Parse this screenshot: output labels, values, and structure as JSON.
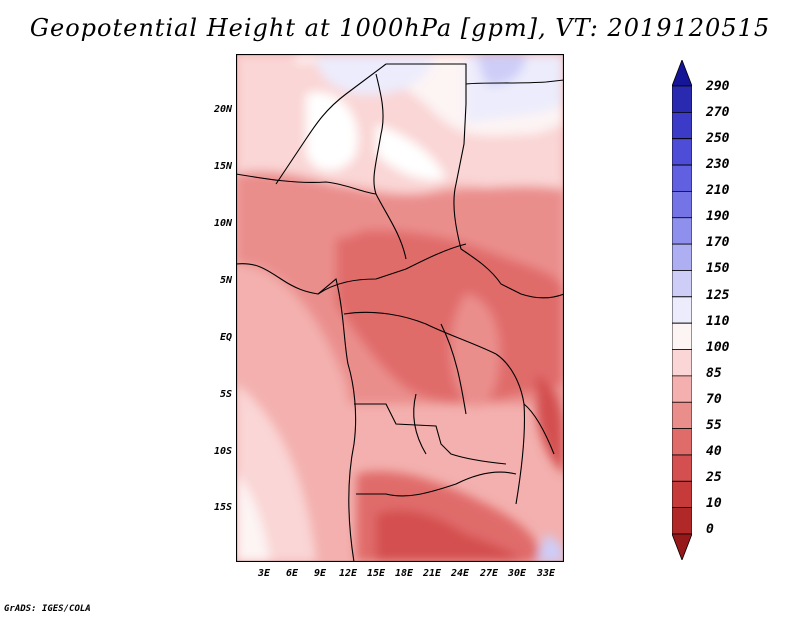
{
  "title": "Geopotential Height at 1000hPa [gpm], VT: 2019120515",
  "variable": "Geopotential Height",
  "level": "1000hPa",
  "units": "gpm",
  "valid_time": "2019120515",
  "map": {
    "lat_labels": [
      "20N",
      "15N",
      "10N",
      "5N",
      "EQ",
      "5S",
      "10S",
      "15S"
    ],
    "lat_values": [
      20,
      15,
      10,
      5,
      0,
      -5,
      -10,
      -15
    ],
    "lon_labels": [
      "3E",
      "6E",
      "9E",
      "12E",
      "15E",
      "18E",
      "21E",
      "24E",
      "27E",
      "30E",
      "33E"
    ],
    "lon_values": [
      3,
      6,
      9,
      12,
      15,
      18,
      21,
      24,
      27,
      30,
      33
    ],
    "lat_range": [
      -20,
      24.5
    ],
    "lon_range": [
      0,
      35
    ]
  },
  "colorbar": {
    "labels": [
      "290",
      "270",
      "250",
      "230",
      "210",
      "190",
      "170",
      "150",
      "125",
      "110",
      "100",
      "85",
      "70",
      "55",
      "40",
      "25",
      "10",
      "0"
    ],
    "colors": [
      "#151597",
      "#2a2ab0",
      "#3b3bc8",
      "#4d4dd8",
      "#6060e0",
      "#7474e6",
      "#8f8fee",
      "#aeaef3",
      "#cdcdf8",
      "#ececfc",
      "#fdf4f4",
      "#fad6d6",
      "#f3b0ae",
      "#ea8e8c",
      "#e06c6a",
      "#d45050",
      "#c63a3a",
      "#b02828",
      "#971818"
    ]
  },
  "footer": "GrADS: IGES/COLA"
}
